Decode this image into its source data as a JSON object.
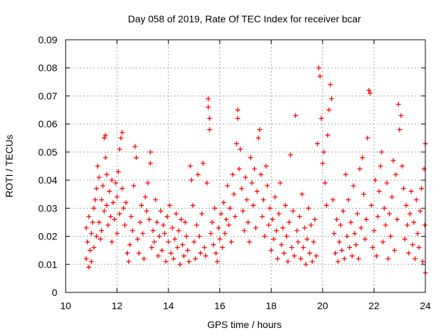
{
  "chart_data": {
    "type": "scatter",
    "title": "Day 058 of 2019, Rate Of TEC Index for receiver bcar",
    "xlabel": "GPS time / hours",
    "ylabel": "ROTI / TECUs",
    "xlim": [
      10,
      24
    ],
    "ylim": [
      0,
      0.09
    ],
    "xticks": [
      10,
      12,
      14,
      16,
      18,
      20,
      22,
      24
    ],
    "xtick_labels": [
      "10",
      "12",
      "14",
      "16",
      "18",
      "20",
      "22",
      "24"
    ],
    "yticks": [
      0,
      0.01,
      0.02,
      0.03,
      0.04,
      0.05,
      0.06,
      0.07,
      0.08,
      0.09
    ],
    "ytick_labels": [
      "0",
      "0.01",
      "0.02",
      "0.03",
      "0.04",
      "0.05",
      "0.06",
      "0.07",
      "0.08",
      "0.09"
    ],
    "grid": true,
    "marker": "+",
    "color": "#ff0000",
    "points": [
      [
        10.8,
        0.012
      ],
      [
        10.8,
        0.023
      ],
      [
        10.85,
        0.018
      ],
      [
        10.9,
        0.009
      ],
      [
        10.9,
        0.027
      ],
      [
        10.95,
        0.015
      ],
      [
        11.0,
        0.021
      ],
      [
        11.0,
        0.011
      ],
      [
        11.05,
        0.025
      ],
      [
        11.1,
        0.03
      ],
      [
        11.1,
        0.016
      ],
      [
        11.15,
        0.033
      ],
      [
        11.2,
        0.02
      ],
      [
        11.2,
        0.037
      ],
      [
        11.25,
        0.045
      ],
      [
        11.3,
        0.041
      ],
      [
        11.3,
        0.025
      ],
      [
        11.35,
        0.019
      ],
      [
        11.4,
        0.033
      ],
      [
        11.4,
        0.022
      ],
      [
        11.45,
        0.038
      ],
      [
        11.5,
        0.029
      ],
      [
        11.5,
        0.055
      ],
      [
        11.55,
        0.056
      ],
      [
        11.55,
        0.048
      ],
      [
        11.6,
        0.042
      ],
      [
        11.6,
        0.031
      ],
      [
        11.65,
        0.024
      ],
      [
        11.7,
        0.036
      ],
      [
        11.75,
        0.027
      ],
      [
        11.8,
        0.04
      ],
      [
        11.8,
        0.018
      ],
      [
        11.85,
        0.032
      ],
      [
        11.9,
        0.026
      ],
      [
        11.95,
        0.039
      ],
      [
        12.0,
        0.021
      ],
      [
        12.0,
        0.034
      ],
      [
        12.05,
        0.043
      ],
      [
        12.1,
        0.028
      ],
      [
        12.1,
        0.051
      ],
      [
        12.15,
        0.055
      ],
      [
        12.2,
        0.057
      ],
      [
        12.2,
        0.037
      ],
      [
        12.25,
        0.03
      ],
      [
        12.3,
        0.024
      ],
      [
        12.35,
        0.032
      ],
      [
        12.4,
        0.014
      ],
      [
        12.45,
        0.011
      ],
      [
        12.5,
        0.017
      ],
      [
        12.55,
        0.027
      ],
      [
        12.6,
        0.022
      ],
      [
        12.65,
        0.038
      ],
      [
        12.7,
        0.052
      ],
      [
        12.75,
        0.048
      ],
      [
        12.8,
        0.019
      ],
      [
        12.85,
        0.014
      ],
      [
        12.9,
        0.025
      ],
      [
        12.95,
        0.031
      ],
      [
        13.0,
        0.021
      ],
      [
        13.05,
        0.012
      ],
      [
        13.1,
        0.034
      ],
      [
        13.15,
        0.029
      ],
      [
        13.2,
        0.039
      ],
      [
        13.25,
        0.026
      ],
      [
        13.3,
        0.046
      ],
      [
        13.3,
        0.05
      ],
      [
        13.35,
        0.016
      ],
      [
        13.4,
        0.022
      ],
      [
        13.45,
        0.018
      ],
      [
        13.5,
        0.033
      ],
      [
        13.55,
        0.025
      ],
      [
        13.6,
        0.013
      ],
      [
        13.65,
        0.02
      ],
      [
        13.7,
        0.029
      ],
      [
        13.75,
        0.015
      ],
      [
        13.8,
        0.024
      ],
      [
        13.85,
        0.021
      ],
      [
        13.9,
        0.011
      ],
      [
        13.95,
        0.027
      ],
      [
        14.0,
        0.018
      ],
      [
        14.05,
        0.031
      ],
      [
        14.1,
        0.014
      ],
      [
        14.15,
        0.023
      ],
      [
        14.2,
        0.012
      ],
      [
        14.25,
        0.019
      ],
      [
        14.3,
        0.028
      ],
      [
        14.35,
        0.016
      ],
      [
        14.4,
        0.022
      ],
      [
        14.45,
        0.01
      ],
      [
        14.5,
        0.026
      ],
      [
        14.55,
        0.017
      ],
      [
        14.6,
        0.013
      ],
      [
        14.65,
        0.025
      ],
      [
        14.7,
        0.02
      ],
      [
        14.75,
        0.015
      ],
      [
        14.8,
        0.011
      ],
      [
        14.85,
        0.045
      ],
      [
        14.9,
        0.04
      ],
      [
        14.95,
        0.031
      ],
      [
        15.0,
        0.018
      ],
      [
        15.05,
        0.012
      ],
      [
        15.1,
        0.024
      ],
      [
        15.15,
        0.042
      ],
      [
        15.2,
        0.02
      ],
      [
        15.25,
        0.014
      ],
      [
        15.3,
        0.028
      ],
      [
        15.35,
        0.046
      ],
      [
        15.4,
        0.016
      ],
      [
        15.45,
        0.013
      ],
      [
        15.5,
        0.039
      ],
      [
        15.55,
        0.069
      ],
      [
        15.55,
        0.066
      ],
      [
        15.6,
        0.058
      ],
      [
        15.6,
        0.062
      ],
      [
        15.65,
        0.021
      ],
      [
        15.7,
        0.025
      ],
      [
        15.75,
        0.017
      ],
      [
        15.8,
        0.03
      ],
      [
        15.85,
        0.014
      ],
      [
        15.9,
        0.011
      ],
      [
        15.95,
        0.023
      ],
      [
        16.0,
        0.019
      ],
      [
        16.05,
        0.028
      ],
      [
        16.1,
        0.016
      ],
      [
        16.15,
        0.032
      ],
      [
        16.2,
        0.021
      ],
      [
        16.25,
        0.026
      ],
      [
        16.3,
        0.038
      ],
      [
        16.35,
        0.024
      ],
      [
        16.4,
        0.03
      ],
      [
        16.45,
        0.018
      ],
      [
        16.5,
        0.042
      ],
      [
        16.55,
        0.035
      ],
      [
        16.6,
        0.027
      ],
      [
        16.65,
        0.053
      ],
      [
        16.7,
        0.065
      ],
      [
        16.7,
        0.062
      ],
      [
        16.75,
        0.044
      ],
      [
        16.8,
        0.051
      ],
      [
        16.85,
        0.037
      ],
      [
        16.9,
        0.029
      ],
      [
        16.95,
        0.022
      ],
      [
        17.0,
        0.041
      ],
      [
        17.05,
        0.033
      ],
      [
        17.1,
        0.025
      ],
      [
        17.15,
        0.018
      ],
      [
        17.2,
        0.048
      ],
      [
        17.25,
        0.039
      ],
      [
        17.3,
        0.031
      ],
      [
        17.35,
        0.044
      ],
      [
        17.4,
        0.023
      ],
      [
        17.45,
        0.036
      ],
      [
        17.5,
        0.055
      ],
      [
        17.55,
        0.058
      ],
      [
        17.6,
        0.042
      ],
      [
        17.65,
        0.027
      ],
      [
        17.7,
        0.033
      ],
      [
        17.75,
        0.02
      ],
      [
        17.8,
        0.045
      ],
      [
        17.85,
        0.038
      ],
      [
        17.9,
        0.024
      ],
      [
        17.95,
        0.03
      ],
      [
        18.0,
        0.015
      ],
      [
        18.05,
        0.026
      ],
      [
        18.1,
        0.019
      ],
      [
        18.15,
        0.034
      ],
      [
        18.2,
        0.022
      ],
      [
        18.25,
        0.012
      ],
      [
        18.3,
        0.028
      ],
      [
        18.35,
        0.039
      ],
      [
        18.4,
        0.017
      ],
      [
        18.45,
        0.023
      ],
      [
        18.5,
        0.014
      ],
      [
        18.55,
        0.031
      ],
      [
        18.6,
        0.02
      ],
      [
        18.65,
        0.011
      ],
      [
        18.7,
        0.025
      ],
      [
        18.75,
        0.049
      ],
      [
        18.8,
        0.016
      ],
      [
        18.85,
        0.029
      ],
      [
        18.9,
        0.013
      ],
      [
        18.95,
        0.063
      ],
      [
        19.0,
        0.022
      ],
      [
        19.05,
        0.018
      ],
      [
        19.1,
        0.027
      ],
      [
        19.15,
        0.012
      ],
      [
        19.2,
        0.035
      ],
      [
        19.25,
        0.016
      ],
      [
        19.3,
        0.023
      ],
      [
        19.35,
        0.01
      ],
      [
        19.4,
        0.019
      ],
      [
        19.45,
        0.03
      ],
      [
        19.5,
        0.014
      ],
      [
        19.55,
        0.024
      ],
      [
        19.6,
        0.011
      ],
      [
        19.65,
        0.018
      ],
      [
        19.7,
        0.026
      ],
      [
        19.75,
        0.013
      ],
      [
        19.8,
        0.053
      ],
      [
        19.85,
        0.08
      ],
      [
        19.9,
        0.077
      ],
      [
        19.95,
        0.062
      ],
      [
        20.0,
        0.046
      ],
      [
        20.05,
        0.05
      ],
      [
        20.1,
        0.039
      ],
      [
        20.15,
        0.031
      ],
      [
        20.2,
        0.056
      ],
      [
        20.25,
        0.065
      ],
      [
        20.3,
        0.074
      ],
      [
        20.35,
        0.069
      ],
      [
        20.4,
        0.033
      ],
      [
        20.45,
        0.021
      ],
      [
        20.5,
        0.014
      ],
      [
        20.55,
        0.026
      ],
      [
        20.6,
        0.011
      ],
      [
        20.65,
        0.018
      ],
      [
        20.7,
        0.024
      ],
      [
        20.75,
        0.015
      ],
      [
        20.8,
        0.029
      ],
      [
        20.85,
        0.012
      ],
      [
        20.9,
        0.042
      ],
      [
        20.95,
        0.02
      ],
      [
        21.0,
        0.033
      ],
      [
        21.05,
        0.016
      ],
      [
        21.1,
        0.025
      ],
      [
        21.15,
        0.013
      ],
      [
        21.2,
        0.038
      ],
      [
        21.25,
        0.021
      ],
      [
        21.3,
        0.017
      ],
      [
        21.35,
        0.028
      ],
      [
        21.4,
        0.012
      ],
      [
        21.45,
        0.044
      ],
      [
        21.5,
        0.023
      ],
      [
        21.55,
        0.048
      ],
      [
        21.6,
        0.035
      ],
      [
        21.65,
        0.019
      ],
      [
        21.7,
        0.026
      ],
      [
        21.75,
        0.055
      ],
      [
        21.8,
        0.072
      ],
      [
        21.85,
        0.071
      ],
      [
        21.9,
        0.031
      ],
      [
        21.95,
        0.016
      ],
      [
        22.0,
        0.022
      ],
      [
        22.05,
        0.04
      ],
      [
        22.1,
        0.013
      ],
      [
        22.15,
        0.027
      ],
      [
        22.2,
        0.036
      ],
      [
        22.25,
        0.045
      ],
      [
        22.3,
        0.05
      ],
      [
        22.35,
        0.018
      ],
      [
        22.4,
        0.03
      ],
      [
        22.45,
        0.024
      ],
      [
        22.5,
        0.039
      ],
      [
        22.55,
        0.012
      ],
      [
        22.6,
        0.028
      ],
      [
        22.65,
        0.02
      ],
      [
        22.7,
        0.034
      ],
      [
        22.75,
        0.047
      ],
      [
        22.8,
        0.015
      ],
      [
        22.85,
        0.042
      ],
      [
        22.9,
        0.026
      ],
      [
        22.95,
        0.067
      ],
      [
        23.0,
        0.058
      ],
      [
        23.05,
        0.063
      ],
      [
        23.1,
        0.045
      ],
      [
        23.15,
        0.037
      ],
      [
        23.2,
        0.019
      ],
      [
        23.25,
        0.031
      ],
      [
        23.3,
        0.024
      ],
      [
        23.35,
        0.014
      ],
      [
        23.4,
        0.028
      ],
      [
        23.45,
        0.036
      ],
      [
        23.5,
        0.017
      ],
      [
        23.55,
        0.025
      ],
      [
        23.6,
        0.012
      ],
      [
        23.65,
        0.033
      ],
      [
        23.7,
        0.021
      ],
      [
        23.75,
        0.016
      ],
      [
        23.8,
        0.029
      ],
      [
        23.85,
        0.037
      ],
      [
        23.9,
        0.011
      ],
      [
        23.95,
        0.044
      ],
      [
        24.0,
        0.053
      ],
      [
        24.0,
        0.007
      ],
      [
        23.98,
        0.024
      ]
    ]
  }
}
